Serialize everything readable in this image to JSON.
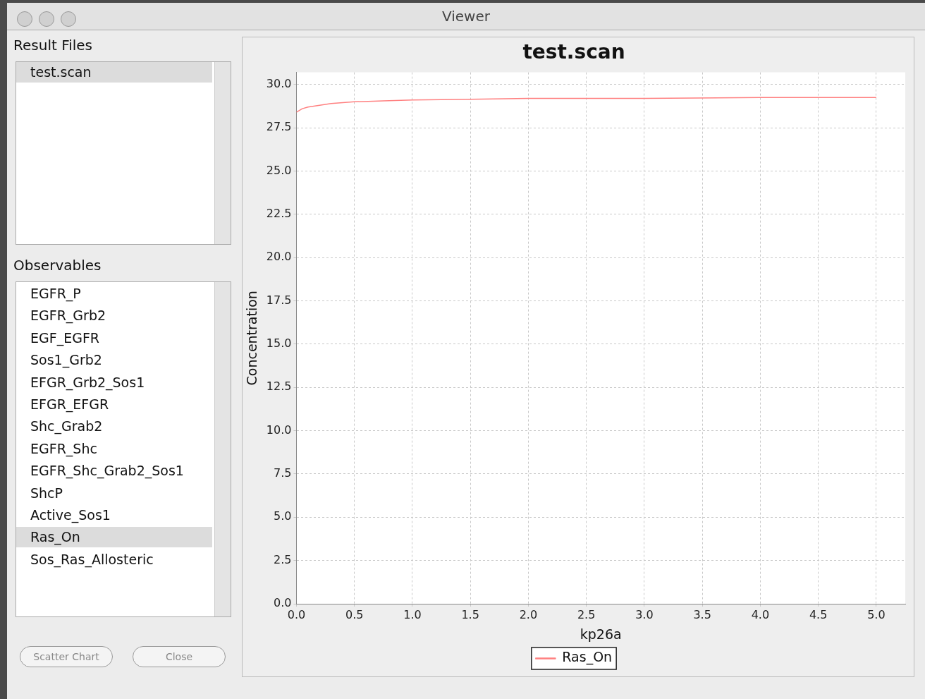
{
  "chart_data": {
    "type": "line",
    "title": "test.scan",
    "xlabel": "kp26a",
    "ylabel": "Concentration",
    "x": [
      0,
      0.05,
      0.1,
      0.2,
      0.3,
      0.5,
      0.75,
      1.0,
      1.5,
      2.0,
      3.0,
      4.0,
      5.0
    ],
    "series": [
      {
        "name": "Ras_On",
        "color": "#ff8080",
        "values": [
          28.4,
          28.6,
          28.7,
          28.8,
          28.9,
          29.0,
          29.05,
          29.1,
          29.15,
          29.2,
          29.2,
          29.25,
          29.25
        ]
      }
    ],
    "xlim": [
      0,
      5.25
    ],
    "ylim": [
      0,
      30.7
    ],
    "xticks": [
      {
        "value": 0,
        "label": "0.0"
      },
      {
        "value": 0.5,
        "label": "0.5"
      },
      {
        "value": 1,
        "label": "1.0"
      },
      {
        "value": 1.5,
        "label": "1.5"
      },
      {
        "value": 2,
        "label": "2.0"
      },
      {
        "value": 2.5,
        "label": "2.5"
      },
      {
        "value": 3,
        "label": "3.0"
      },
      {
        "value": 3.5,
        "label": "3.5"
      },
      {
        "value": 4,
        "label": "4.0"
      },
      {
        "value": 4.5,
        "label": "4.5"
      },
      {
        "value": 5,
        "label": "5.0"
      }
    ],
    "yticks": [
      {
        "value": 0,
        "label": "0.0"
      },
      {
        "value": 2.5,
        "label": "2.5"
      },
      {
        "value": 5,
        "label": "5.0"
      },
      {
        "value": 7.5,
        "label": "7.5"
      },
      {
        "value": 10,
        "label": "10.0"
      },
      {
        "value": 12.5,
        "label": "12.5"
      },
      {
        "value": 15,
        "label": "15.0"
      },
      {
        "value": 17.5,
        "label": "17.5"
      },
      {
        "value": 20,
        "label": "20.0"
      },
      {
        "value": 22.5,
        "label": "22.5"
      },
      {
        "value": 25,
        "label": "25.0"
      },
      {
        "value": 27.5,
        "label": "27.5"
      },
      {
        "value": 30,
        "label": "30.0"
      }
    ],
    "grid": true,
    "legend": "bottom",
    "marker": "none",
    "line_style": "solid",
    "annotations": [
      "Viewer",
      "Result Files",
      "test.scan",
      "Observables",
      "EGFR_P",
      "EGFR_Grb2",
      "EGF_EGFR",
      "Sos1_Grb2",
      "EFGR_Grb2_Sos1",
      "EFGR_EFGR",
      "Shc_Grab2",
      "EGFR_Shc",
      "EGFR_Shc_Grab2_Sos1",
      "ShcP",
      "Active_Sos1",
      "Ras_On",
      "Sos_Ras_Allosteric",
      "Scatter Chart",
      "Close"
    ]
  }
}
